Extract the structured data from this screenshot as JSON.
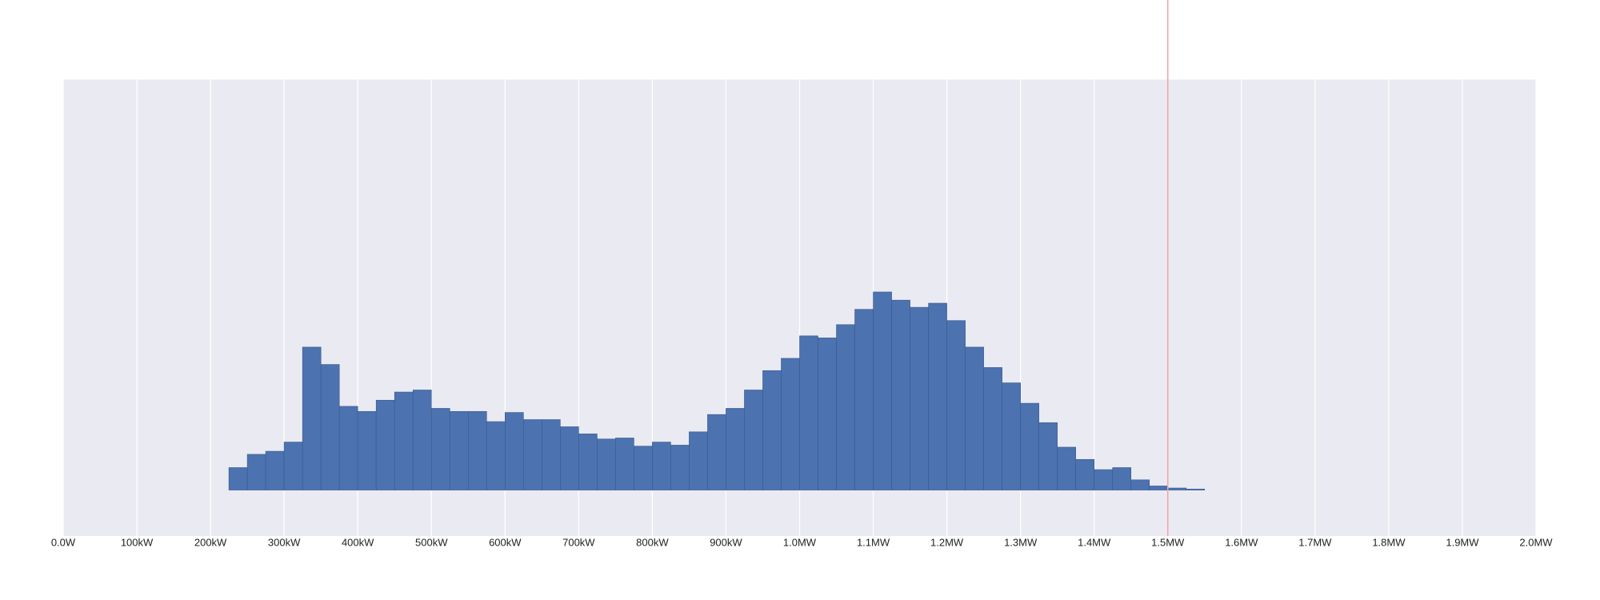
{
  "chart_data": {
    "type": "histogram",
    "bins": [
      225000,
      250000,
      275000,
      300000,
      325000,
      350000,
      375000,
      400000,
      425000,
      450000,
      475000,
      500000,
      525000,
      550000,
      575000,
      600000,
      625000,
      650000,
      675000,
      700000,
      725000,
      750000,
      775000,
      800000,
      825000,
      850000,
      875000,
      900000,
      925000,
      950000,
      975000,
      1000000,
      1025000,
      1050000,
      1075000,
      1100000,
      1125000,
      1150000,
      1175000,
      1200000,
      1225000,
      1250000,
      1275000,
      1300000,
      1325000,
      1350000,
      1375000,
      1400000,
      1425000,
      1450000,
      1475000,
      1500000,
      1525000,
      1550000
    ],
    "values": [
      22,
      35,
      38,
      47,
      140,
      123,
      82,
      77,
      88,
      96,
      98,
      80,
      77,
      77,
      67,
      76,
      69,
      69,
      62,
      55,
      50,
      51,
      43,
      47,
      44,
      57,
      74,
      80,
      98,
      117,
      129,
      151,
      149,
      162,
      177,
      194,
      186,
      179,
      183,
      166,
      140,
      120,
      105,
      85,
      66,
      42,
      30,
      20,
      22,
      10,
      4,
      2,
      1
    ],
    "color": "#4c72b0",
    "xlim": [
      0,
      2000000
    ],
    "ylim": [
      -45,
      402
    ],
    "xticks": [
      {
        "value": 0,
        "label": "0.0W"
      },
      {
        "value": 100000,
        "label": "100kW"
      },
      {
        "value": 200000,
        "label": "200kW"
      },
      {
        "value": 300000,
        "label": "300kW"
      },
      {
        "value": 400000,
        "label": "400kW"
      },
      {
        "value": 500000,
        "label": "500kW"
      },
      {
        "value": 600000,
        "label": "600kW"
      },
      {
        "value": 700000,
        "label": "700kW"
      },
      {
        "value": 800000,
        "label": "800kW"
      },
      {
        "value": 900000,
        "label": "900kW"
      },
      {
        "value": 1000000,
        "label": "1.0MW"
      },
      {
        "value": 1100000,
        "label": "1.1MW"
      },
      {
        "value": 1200000,
        "label": "1.2MW"
      },
      {
        "value": 1300000,
        "label": "1.3MW"
      },
      {
        "value": 1400000,
        "label": "1.4MW"
      },
      {
        "value": 1500000,
        "label": "1.5MW"
      },
      {
        "value": 1600000,
        "label": "1.6MW"
      },
      {
        "value": 1700000,
        "label": "1.7MW"
      },
      {
        "value": 1800000,
        "label": "1.8MW"
      },
      {
        "value": 1900000,
        "label": "1.9MW"
      },
      {
        "value": 2000000,
        "label": "2.0MW"
      }
    ],
    "grid": true,
    "vline": 1500000,
    "vline_color": "#f4a3a8"
  }
}
